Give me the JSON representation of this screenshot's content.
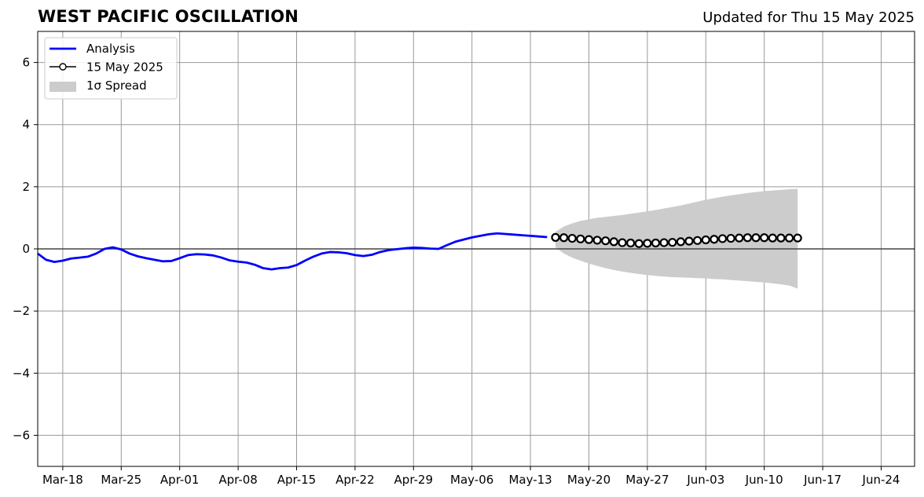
{
  "title": "WEST PACIFIC OSCILLATION",
  "subtitle": "Updated for Thu 15 May 2025",
  "colors": {
    "analysis": "#0000ff",
    "spread": "#cccccc",
    "grid": "#999999",
    "marker_edge": "#000000",
    "marker_face": "#ffffff"
  },
  "chart_data": {
    "type": "line",
    "title": "WEST PACIFIC OSCILLATION",
    "subtitle": "Updated for Thu 15 May 2025",
    "xlabel": "",
    "ylabel": "",
    "xlim": [
      "2025-03-15",
      "2025-06-28"
    ],
    "ylim": [
      -7,
      7
    ],
    "grid": true,
    "legend_placement": "top-left",
    "x_tick_labels": [
      "Mar-18",
      "Mar-25",
      "Apr-01",
      "Apr-08",
      "Apr-15",
      "Apr-22",
      "Apr-29",
      "May-06",
      "May-13",
      "May-20",
      "May-27",
      "Jun-03",
      "Jun-10",
      "Jun-17",
      "Jun-24"
    ],
    "x_tick_dates": [
      "2025-03-18",
      "2025-03-25",
      "2025-04-01",
      "2025-04-08",
      "2025-04-15",
      "2025-04-22",
      "2025-04-29",
      "2025-05-06",
      "2025-05-13",
      "2025-05-20",
      "2025-05-27",
      "2025-06-03",
      "2025-06-10",
      "2025-06-17",
      "2025-06-24"
    ],
    "y_ticks": [
      -6,
      -4,
      -2,
      0,
      2,
      4,
      6
    ],
    "y_tick_labels": [
      "−6",
      "−4",
      "−2",
      "0",
      "2",
      "4",
      "6"
    ],
    "legend": [
      "Analysis",
      "15 May 2025",
      "1σ Spread"
    ],
    "series": [
      {
        "name": "Analysis",
        "x": [
          "2025-03-15",
          "2025-03-16",
          "2025-03-17",
          "2025-03-18",
          "2025-03-19",
          "2025-03-20",
          "2025-03-21",
          "2025-03-22",
          "2025-03-23",
          "2025-03-24",
          "2025-03-25",
          "2025-03-26",
          "2025-03-27",
          "2025-03-28",
          "2025-03-29",
          "2025-03-30",
          "2025-03-31",
          "2025-04-01",
          "2025-04-02",
          "2025-04-03",
          "2025-04-04",
          "2025-04-05",
          "2025-04-06",
          "2025-04-07",
          "2025-04-08",
          "2025-04-09",
          "2025-04-10",
          "2025-04-11",
          "2025-04-12",
          "2025-04-13",
          "2025-04-14",
          "2025-04-15",
          "2025-04-16",
          "2025-04-17",
          "2025-04-18",
          "2025-04-19",
          "2025-04-20",
          "2025-04-21",
          "2025-04-22",
          "2025-04-23",
          "2025-04-24",
          "2025-04-25",
          "2025-04-26",
          "2025-04-27",
          "2025-04-28",
          "2025-04-29",
          "2025-04-30",
          "2025-05-01",
          "2025-05-02",
          "2025-05-03",
          "2025-05-04",
          "2025-05-05",
          "2025-05-06",
          "2025-05-07",
          "2025-05-08",
          "2025-05-09",
          "2025-05-10",
          "2025-05-11",
          "2025-05-12",
          "2025-05-13",
          "2025-05-14",
          "2025-05-15"
        ],
        "values": [
          -0.15,
          -0.35,
          -0.42,
          -0.38,
          -0.31,
          -0.28,
          -0.25,
          -0.15,
          0.0,
          0.05,
          -0.02,
          -0.15,
          -0.24,
          -0.3,
          -0.35,
          -0.4,
          -0.39,
          -0.3,
          -0.2,
          -0.17,
          -0.18,
          -0.21,
          -0.28,
          -0.37,
          -0.41,
          -0.44,
          -0.51,
          -0.62,
          -0.66,
          -0.62,
          -0.6,
          -0.52,
          -0.38,
          -0.25,
          -0.15,
          -0.1,
          -0.11,
          -0.14,
          -0.2,
          -0.23,
          -0.19,
          -0.1,
          -0.04,
          -0.01,
          0.02,
          0.04,
          0.03,
          0.01,
          0.0,
          0.12,
          0.23,
          0.3,
          0.37,
          0.42,
          0.47,
          0.5,
          0.48,
          0.46,
          0.44,
          0.42,
          0.4,
          0.38
        ]
      },
      {
        "name": "15 May 2025",
        "x": [
          "2025-05-16",
          "2025-05-17",
          "2025-05-18",
          "2025-05-19",
          "2025-05-20",
          "2025-05-21",
          "2025-05-22",
          "2025-05-23",
          "2025-05-24",
          "2025-05-25",
          "2025-05-26",
          "2025-05-27",
          "2025-05-28",
          "2025-05-29",
          "2025-05-30",
          "2025-05-31",
          "2025-06-01",
          "2025-06-02",
          "2025-06-03",
          "2025-06-04",
          "2025-06-05",
          "2025-06-06",
          "2025-06-07",
          "2025-06-08",
          "2025-06-09",
          "2025-06-10",
          "2025-06-11",
          "2025-06-12",
          "2025-06-13",
          "2025-06-14"
        ],
        "values": [
          0.37,
          0.36,
          0.34,
          0.32,
          0.3,
          0.28,
          0.26,
          0.23,
          0.2,
          0.19,
          0.17,
          0.18,
          0.19,
          0.2,
          0.21,
          0.23,
          0.25,
          0.27,
          0.29,
          0.31,
          0.33,
          0.34,
          0.35,
          0.36,
          0.36,
          0.36,
          0.35,
          0.35,
          0.35,
          0.35
        ]
      }
    ],
    "spread": {
      "name": "1σ Spread",
      "x": [
        "2025-05-16",
        "2025-05-17",
        "2025-05-18",
        "2025-05-19",
        "2025-05-20",
        "2025-05-21",
        "2025-05-22",
        "2025-05-23",
        "2025-05-24",
        "2025-05-25",
        "2025-05-26",
        "2025-05-27",
        "2025-05-28",
        "2025-05-29",
        "2025-05-30",
        "2025-05-31",
        "2025-06-01",
        "2025-06-02",
        "2025-06-03",
        "2025-06-04",
        "2025-06-05",
        "2025-06-06",
        "2025-06-07",
        "2025-06-08",
        "2025-06-09",
        "2025-06-10",
        "2025-06-11",
        "2025-06-12",
        "2025-06-13",
        "2025-06-14"
      ],
      "upper": [
        0.55,
        0.72,
        0.82,
        0.9,
        0.95,
        1.0,
        1.03,
        1.06,
        1.09,
        1.13,
        1.17,
        1.21,
        1.25,
        1.3,
        1.35,
        1.4,
        1.46,
        1.52,
        1.58,
        1.63,
        1.68,
        1.72,
        1.76,
        1.8,
        1.83,
        1.86,
        1.88,
        1.9,
        1.92,
        1.93
      ],
      "lower": [
        0.05,
        -0.15,
        -0.28,
        -0.38,
        -0.47,
        -0.55,
        -0.62,
        -0.68,
        -0.73,
        -0.77,
        -0.81,
        -0.84,
        -0.87,
        -0.89,
        -0.91,
        -0.92,
        -0.93,
        -0.94,
        -0.95,
        -0.97,
        -0.98,
        -1.0,
        -1.02,
        -1.04,
        -1.06,
        -1.08,
        -1.11,
        -1.14,
        -1.18,
        -1.28
      ]
    }
  }
}
